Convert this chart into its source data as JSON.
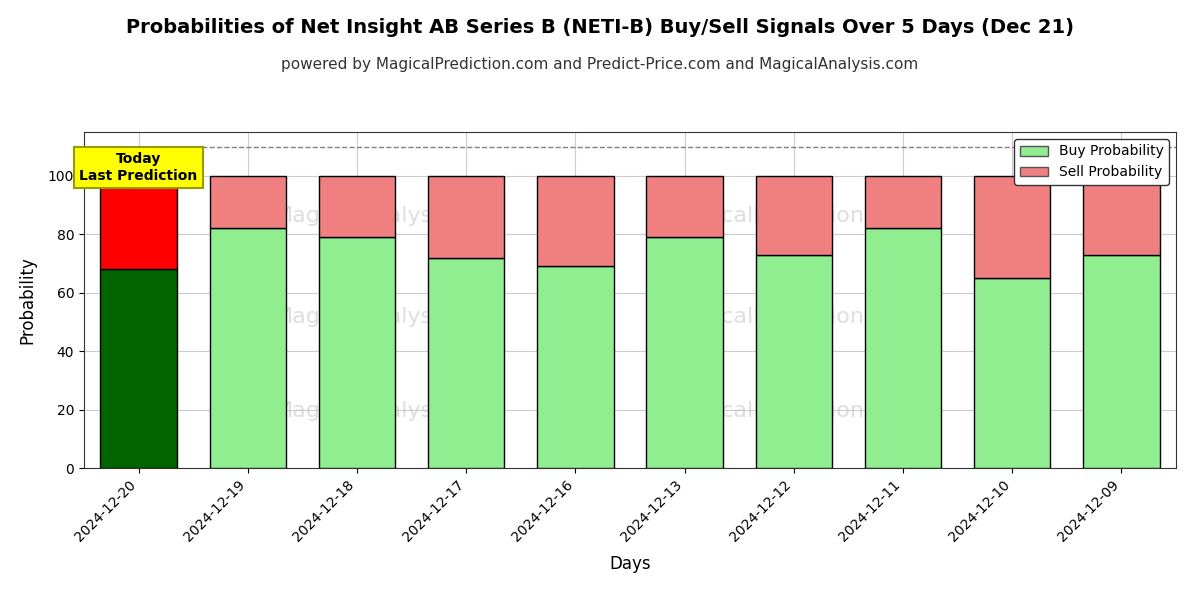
{
  "title": "Probabilities of Net Insight AB Series B (NETI-B) Buy/Sell Signals Over 5 Days (Dec 21)",
  "subtitle": "powered by MagicalPrediction.com and Predict-Price.com and MagicalAnalysis.com",
  "xlabel": "Days",
  "ylabel": "Probability",
  "dates": [
    "2024-12-20",
    "2024-12-19",
    "2024-12-18",
    "2024-12-17",
    "2024-12-16",
    "2024-12-13",
    "2024-12-12",
    "2024-12-11",
    "2024-12-10",
    "2024-12-09"
  ],
  "buy_values": [
    68,
    82,
    79,
    72,
    69,
    79,
    73,
    82,
    65,
    73
  ],
  "sell_values": [
    32,
    18,
    21,
    28,
    31,
    21,
    27,
    18,
    35,
    27
  ],
  "buy_color_today": "#006400",
  "sell_color_today": "#FF0000",
  "buy_color_normal": "#90EE90",
  "sell_color_normal": "#F08080",
  "bar_edgecolor": "#000000",
  "today_label_bg": "#FFFF00",
  "today_label_text": "Today\nLast Prediction",
  "ylim": [
    0,
    115
  ],
  "dashed_line_y": 110,
  "dashed_line_color": "#808080",
  "watermark_color": "#C8C8C8",
  "legend_buy_label": "Buy Probability",
  "legend_sell_label": "Sell Probability",
  "grid_color": "#CCCCCC",
  "yticks": [
    0,
    20,
    40,
    60,
    80,
    100
  ],
  "background_color": "#FFFFFF",
  "title_fontsize": 14,
  "subtitle_fontsize": 11
}
